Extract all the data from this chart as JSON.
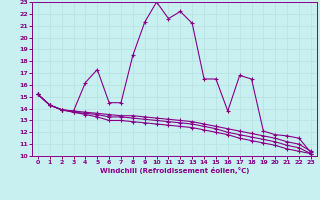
{
  "xlabel": "Windchill (Refroidissement éolien,°C)",
  "bg_color": "#c8f0f0",
  "line_color": "#880088",
  "grid_color": "#b8e4e4",
  "xlim": [
    -0.5,
    23.5
  ],
  "ylim": [
    10,
    23
  ],
  "xticks": [
    0,
    1,
    2,
    3,
    4,
    5,
    6,
    7,
    8,
    9,
    10,
    11,
    12,
    13,
    14,
    15,
    16,
    17,
    18,
    19,
    20,
    21,
    22,
    23
  ],
  "yticks": [
    10,
    11,
    12,
    13,
    14,
    15,
    16,
    17,
    18,
    19,
    20,
    21,
    22,
    23
  ],
  "lines": [
    {
      "x": [
        0,
        1,
        2,
        3,
        4,
        5,
        6,
        7,
        8,
        9,
        10,
        11,
        12,
        13,
        14,
        15,
        16,
        17,
        18,
        19,
        20,
        21,
        22,
        23
      ],
      "y": [
        15.2,
        14.3,
        13.9,
        13.8,
        16.2,
        17.3,
        14.5,
        14.5,
        18.5,
        21.3,
        23.0,
        21.6,
        22.2,
        21.2,
        16.5,
        16.5,
        13.8,
        16.8,
        16.5,
        12.1,
        11.8,
        11.7,
        11.5,
        10.3
      ]
    },
    {
      "x": [
        0,
        1,
        2,
        3,
        4,
        5,
        6,
        7,
        8,
        9,
        10,
        11,
        12,
        13,
        14,
        15,
        16,
        17,
        18,
        19,
        20,
        21,
        22,
        23
      ],
      "y": [
        15.2,
        14.3,
        13.9,
        13.8,
        13.7,
        13.6,
        13.5,
        13.4,
        13.4,
        13.3,
        13.2,
        13.1,
        13.0,
        12.9,
        12.7,
        12.5,
        12.3,
        12.1,
        11.9,
        11.7,
        11.5,
        11.2,
        11.0,
        10.4
      ]
    },
    {
      "x": [
        0,
        1,
        2,
        3,
        4,
        5,
        6,
        7,
        8,
        9,
        10,
        11,
        12,
        13,
        14,
        15,
        16,
        17,
        18,
        19,
        20,
        21,
        22,
        23
      ],
      "y": [
        15.2,
        14.3,
        13.9,
        13.7,
        13.6,
        13.5,
        13.3,
        13.3,
        13.2,
        13.1,
        13.0,
        12.9,
        12.8,
        12.7,
        12.5,
        12.3,
        12.0,
        11.8,
        11.6,
        11.4,
        11.2,
        10.9,
        10.7,
        10.2
      ]
    },
    {
      "x": [
        0,
        1,
        2,
        3,
        4,
        5,
        6,
        7,
        8,
        9,
        10,
        11,
        12,
        13,
        14,
        15,
        16,
        17,
        18,
        19,
        20,
        21,
        22,
        23
      ],
      "y": [
        15.2,
        14.3,
        13.9,
        13.7,
        13.5,
        13.3,
        13.0,
        13.0,
        12.9,
        12.8,
        12.7,
        12.6,
        12.5,
        12.4,
        12.2,
        12.0,
        11.8,
        11.5,
        11.3,
        11.1,
        10.9,
        10.6,
        10.4,
        10.2
      ]
    }
  ]
}
